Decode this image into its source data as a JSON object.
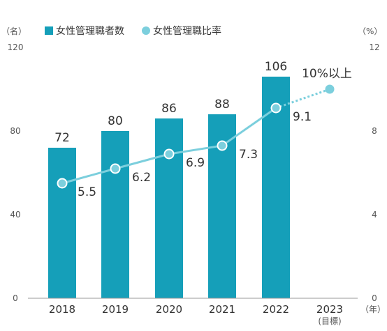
{
  "chart_data": {
    "type": "bar",
    "categories": [
      "2018",
      "2019",
      "2020",
      "2021",
      "2022",
      "2023"
    ],
    "category_sublabels": [
      "",
      "",
      "",
      "",
      "",
      "(目標)"
    ],
    "left_axis": {
      "unit": "（名）",
      "ylim": [
        0,
        120
      ],
      "ticks": [
        0,
        40,
        80,
        120
      ]
    },
    "right_axis": {
      "unit": "（%）",
      "ylim": [
        0,
        12
      ],
      "ticks": [
        0,
        4,
        8,
        12
      ]
    },
    "x_unit": "（年）",
    "series": [
      {
        "name": "女性管理職者数",
        "type": "bar",
        "axis": "left",
        "color": "#159fb9",
        "values": [
          72,
          80,
          86,
          88,
          106,
          null
        ],
        "labels": [
          "72",
          "80",
          "86",
          "88",
          "106",
          ""
        ]
      },
      {
        "name": "女性管理職比率",
        "type": "line",
        "axis": "right",
        "color": "#7ccfdd",
        "values": [
          5.5,
          6.2,
          6.9,
          7.3,
          9.1,
          10
        ],
        "labels": [
          "5.5",
          "6.2",
          "6.9",
          "7.3",
          "9.1",
          "10%以上"
        ],
        "dashed_from_index": 4
      }
    ],
    "legend": "top-left",
    "grid": false
  }
}
